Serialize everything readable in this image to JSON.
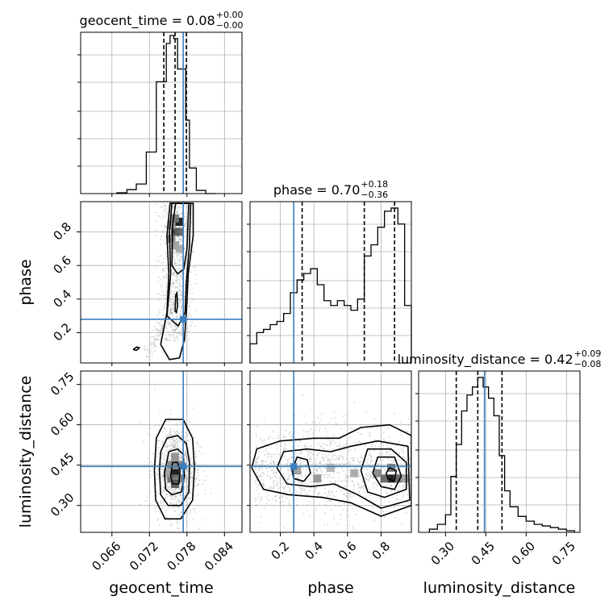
{
  "chart_data": {
    "type": "corner",
    "parameters": [
      "geocent_time",
      "phase",
      "luminosity_distance"
    ],
    "injected_values": {
      "geocent_time": 0.0774,
      "phase": 0.28,
      "luminosity_distance": 0.445
    },
    "colors": {
      "truth": "#3a7ebf",
      "hist": "#000000",
      "grid": "#b0b0b0",
      "scatter": "#888888"
    },
    "grid": true,
    "titles": [
      {
        "param": "geocent_time",
        "text": "geocent_time = 0.08",
        "sup": "+0.00",
        "sub": "−0.00"
      },
      {
        "param": "phase",
        "text": "phase = 0.70",
        "sup": "+0.18",
        "sub": "−0.36"
      },
      {
        "param": "luminosity_distance",
        "text": "luminosity_distance = 0.42",
        "sup": "+0.09",
        "sub": "−0.08"
      }
    ],
    "axis_labels": {
      "geocent_time": "geocent_time",
      "phase": "phase",
      "luminosity_distance": "luminosity_distance"
    },
    "ranges": {
      "geocent_time": [
        0.061,
        0.0868
      ],
      "phase": [
        0.02,
        0.98
      ],
      "luminosity_distance": [
        0.2,
        0.8
      ]
    },
    "ticks": {
      "geocent_time": [
        {
          "v": 0.066,
          "label": "0.066"
        },
        {
          "v": 0.072,
          "label": "0.072"
        },
        {
          "v": 0.078,
          "label": "0.078"
        },
        {
          "v": 0.084,
          "label": "0.084"
        }
      ],
      "phase": [
        {
          "v": 0.2,
          "label": "0.2"
        },
        {
          "v": 0.4,
          "label": "0.4"
        },
        {
          "v": 0.6,
          "label": "0.6"
        },
        {
          "v": 0.8,
          "label": "0.8"
        }
      ],
      "luminosity_distance": [
        {
          "v": 0.3,
          "label": "0.30"
        },
        {
          "v": 0.45,
          "label": "0.45"
        },
        {
          "v": 0.6,
          "label": "0.60"
        },
        {
          "v": 0.75,
          "label": "0.75"
        }
      ]
    },
    "histograms": [
      {
        "param": "geocent_time",
        "quantiles": [
          0.0743,
          0.0761,
          0.0779
        ],
        "bins": [
          0.0668,
          0.0684,
          0.0699,
          0.0715,
          0.0731,
          0.0747,
          0.0753,
          0.0759,
          0.0765,
          0.0778,
          0.0784,
          0.0795,
          0.081,
          0.0826
        ],
        "counts": [
          0.005,
          0.025,
          0.06,
          0.26,
          0.7,
          0.94,
          0.99,
          0.97,
          0.78,
          0.46,
          0.16,
          0.02,
          0.0
        ]
      },
      {
        "param": "phase",
        "quantiles": [
          0.33,
          0.7,
          0.88
        ],
        "bins": [
          0.02,
          0.06,
          0.1,
          0.14,
          0.18,
          0.22,
          0.26,
          0.3,
          0.34,
          0.38,
          0.42,
          0.46,
          0.5,
          0.54,
          0.58,
          0.62,
          0.66,
          0.7,
          0.74,
          0.78,
          0.82,
          0.86,
          0.9,
          0.94,
          0.98
        ],
        "counts": [
          0.12,
          0.19,
          0.21,
          0.24,
          0.26,
          0.31,
          0.44,
          0.52,
          0.56,
          0.59,
          0.49,
          0.39,
          0.36,
          0.39,
          0.36,
          0.33,
          0.4,
          0.67,
          0.74,
          0.85,
          0.95,
          0.97,
          0.87,
          0.36
        ]
      },
      {
        "param": "luminosity_distance",
        "quantiles": [
          0.34,
          0.42,
          0.51
        ],
        "bins": [
          0.24,
          0.27,
          0.3,
          0.32,
          0.34,
          0.36,
          0.38,
          0.4,
          0.42,
          0.44,
          0.46,
          0.48,
          0.5,
          0.52,
          0.54,
          0.57,
          0.6,
          0.63,
          0.66,
          0.69,
          0.72,
          0.75,
          0.78
        ],
        "counts": [
          0.02,
          0.05,
          0.11,
          0.35,
          0.55,
          0.76,
          0.86,
          0.91,
          0.97,
          0.91,
          0.84,
          0.73,
          0.48,
          0.26,
          0.16,
          0.1,
          0.07,
          0.05,
          0.04,
          0.03,
          0.02,
          0.01
        ]
      }
    ],
    "scatter_2d": [
      {
        "x": "geocent_time",
        "y": "phase",
        "center": [
          0.0762,
          0.55
        ],
        "spread": [
          0.0013,
          0.25
        ],
        "tail_to": [
          0.0715,
          0.07
        ],
        "n": 900
      },
      {
        "x": "geocent_time",
        "y": "luminosity_distance",
        "center": [
          0.0762,
          0.43
        ],
        "spread": [
          0.0017,
          0.085
        ],
        "n": 900
      },
      {
        "x": "phase",
        "y": "luminosity_distance",
        "center": [
          0.6,
          0.43
        ],
        "spread": [
          0.28,
          0.085
        ],
        "n": 1100
      }
    ]
  }
}
